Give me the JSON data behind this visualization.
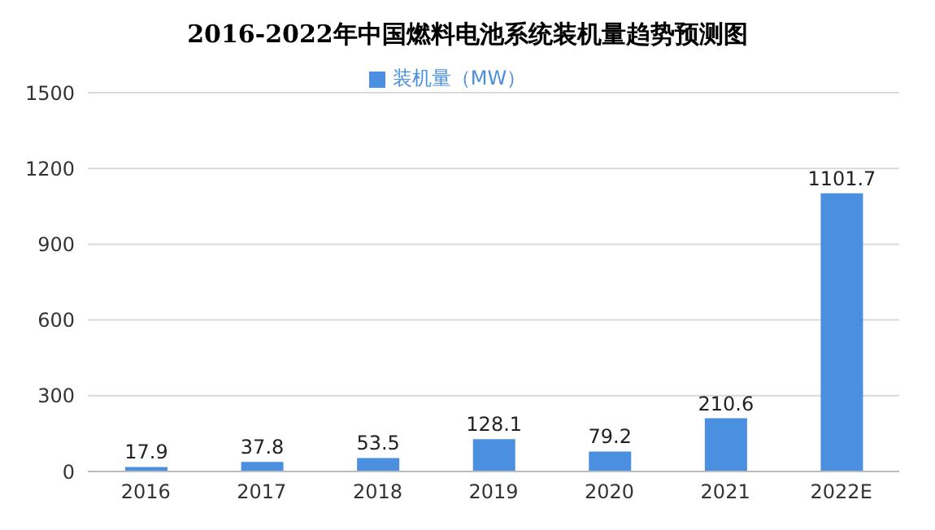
{
  "chart_data": {
    "type": "bar",
    "title": "2016-2022年中国燃料电池系统装机量趋势预测图",
    "categories": [
      "2016",
      "2017",
      "2018",
      "2019",
      "2020",
      "2021",
      "2022E"
    ],
    "series": [
      {
        "name": "装机量（MW）",
        "color": "#4a8fe0",
        "values": [
          17.9,
          37.8,
          53.5,
          128.1,
          79.2,
          210.6,
          1101.7
        ]
      }
    ],
    "ylim": [
      0,
      1500
    ],
    "yticks": [
      0,
      300,
      600,
      900,
      1200,
      1500
    ],
    "grid": "y",
    "legend": "top",
    "data_labels": true
  }
}
